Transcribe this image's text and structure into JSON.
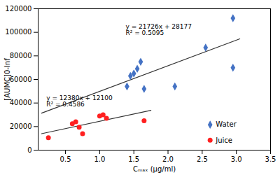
{
  "chart_data": {
    "type": "scatter",
    "xlabel": "Cₘₐₓ (μg/ml)",
    "ylabel": "[AUMC]0-Inf",
    "series": [
      {
        "name": "Water",
        "color": "#4472C4",
        "marker": "diamond",
        "x": [
          1.4,
          1.45,
          1.5,
          1.55,
          1.6,
          1.65,
          2.1,
          2.55,
          2.95,
          2.95
        ],
        "values": [
          54000,
          63000,
          65000,
          69000,
          75000,
          52000,
          54000,
          87000,
          112000,
          70000
        ],
        "trendline": {
          "x": [
            0.15,
            3.05
          ],
          "values": [
            31435.9,
            94441.3
          ],
          "color": "#333333"
        }
      },
      {
        "name": "Juice",
        "color": "#FF2020",
        "marker": "circle",
        "x": [
          0.25,
          0.6,
          0.65,
          0.7,
          0.75,
          1.0,
          1.05,
          1.1,
          1.65
        ],
        "values": [
          10500,
          22500,
          24000,
          19500,
          14000,
          29000,
          30000,
          27000,
          25000
        ],
        "trendline": {
          "x": [
            0.15,
            1.75
          ],
          "values": [
            13957,
            33765
          ],
          "color": "#333333"
        }
      }
    ],
    "annotations": [
      {
        "text": "y = 21726x + 28177\nR² = 0.5095",
        "x": 1.38,
        "y": 107000
      },
      {
        "text": "y = 12380x + 12100\nR² = 0.4586",
        "x": 0.22,
        "y": 46000
      }
    ],
    "xlim": [
      0.1,
      3.5
    ],
    "xticks": [
      0.5,
      {
        "value": 1,
        "label": "1.0"
      },
      1.5,
      {
        "value": 2,
        "label": "2.0"
      },
      2.5,
      {
        "value": 3,
        "label": "3.0"
      },
      3.5
    ],
    "ylim": [
      0,
      120000
    ],
    "yticks": [
      0,
      20000,
      40000,
      60000,
      80000,
      100000,
      120000
    ],
    "legend": "lower right",
    "grid": false
  }
}
